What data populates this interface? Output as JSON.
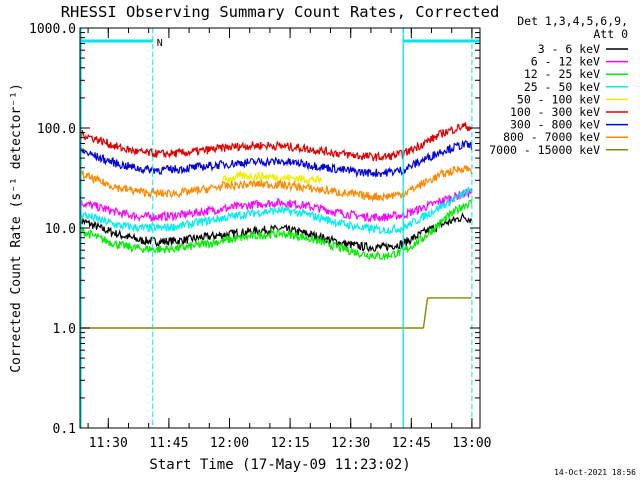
{
  "chart_data": {
    "type": "line",
    "title": "RHESSI Observing Summary Count Rates, Corrected",
    "xlabel": "Start Time (17-May-09 11:23:02)",
    "ylabel": "Corrected Count Rate (s⁻¹ detector⁻¹)",
    "ylim": [
      0.1,
      1000
    ],
    "yscale": "log",
    "xlim_minutes": [
      0,
      99
    ],
    "x_ticks": [
      "11:30",
      "11:45",
      "12:00",
      "12:15",
      "12:30",
      "12:45",
      "13:00"
    ],
    "x_tick_minutes": [
      7,
      22,
      37,
      52,
      67,
      82,
      97
    ],
    "y_ticks": [
      "0.1",
      "1.0",
      "10.0",
      "100.0",
      "1000.0"
    ],
    "y_tick_values": [
      0.1,
      1,
      10,
      100,
      1000
    ],
    "x_unit": "minutes since start",
    "legend_header": [
      "Det 1,3,4,5,6,9,",
      "Att 0"
    ],
    "legend_placement": "right",
    "timeline_marker": "N",
    "timeline_color": "#00e5ee",
    "timeline_bars": [
      [
        0,
        18
      ],
      [
        80,
        99
      ]
    ],
    "timeline_boundaries": [
      18,
      80,
      97
    ],
    "timeline_edges": [
      0,
      80
    ],
    "series": [
      {
        "name": "3 - 6 keV",
        "color": "#000000",
        "x": [
          0,
          5,
          10,
          15,
          20,
          25,
          30,
          35,
          40,
          45,
          50,
          55,
          60,
          65,
          70,
          75,
          80,
          85,
          90,
          95,
          97
        ],
        "y": [
          12,
          10,
          8.5,
          7.5,
          7.3,
          7.5,
          8,
          8.5,
          9,
          9.5,
          9.8,
          9,
          8,
          7,
          6.5,
          6.4,
          7,
          9,
          11,
          13,
          12
        ]
      },
      {
        "name": "6 - 12 keV",
        "color": "#ff00ff",
        "x": [
          0,
          5,
          10,
          15,
          20,
          25,
          30,
          35,
          40,
          45,
          50,
          55,
          60,
          65,
          70,
          75,
          80,
          85,
          90,
          95,
          97
        ],
        "y": [
          18,
          16,
          14,
          13,
          13,
          13.5,
          14.5,
          15.5,
          16.5,
          17.5,
          18,
          17,
          15.5,
          14,
          13,
          12.8,
          13.5,
          16,
          19,
          22,
          23
        ]
      },
      {
        "name": "12 - 25 keV",
        "color": "#00ee00",
        "x": [
          0,
          5,
          10,
          15,
          20,
          25,
          30,
          35,
          40,
          45,
          50,
          55,
          60,
          65,
          70,
          75,
          80,
          85,
          90,
          95,
          97
        ],
        "y": [
          9.5,
          7.8,
          6.7,
          6.2,
          6.1,
          6.3,
          6.8,
          7.4,
          8,
          8.5,
          8.8,
          8.2,
          7.2,
          6.2,
          5.5,
          5.2,
          5.8,
          8,
          12,
          17,
          18
        ]
      },
      {
        "name": "25 - 50 keV",
        "color": "#00eeee",
        "x": [
          0,
          5,
          10,
          15,
          20,
          25,
          30,
          35,
          40,
          45,
          50,
          55,
          60,
          65,
          70,
          75,
          80,
          85,
          90,
          95,
          97
        ],
        "y": [
          14,
          12,
          10.5,
          10,
          10,
          10.5,
          11.5,
          12.5,
          13.5,
          14.5,
          15,
          14,
          12.5,
          11,
          10,
          9.5,
          10,
          13,
          17,
          22,
          24
        ]
      },
      {
        "name": "50 - 100 keV",
        "color": "#eeee00",
        "x": [
          35,
          40,
          45,
          50,
          55,
          60
        ],
        "y": [
          30,
          33,
          33,
          32,
          31,
          30
        ]
      },
      {
        "name": "100 - 300 keV",
        "color": "#dd0000",
        "x": [
          0,
          5,
          10,
          15,
          20,
          25,
          30,
          35,
          40,
          45,
          50,
          55,
          60,
          65,
          70,
          75,
          80,
          85,
          90,
          95,
          97
        ],
        "y": [
          88,
          75,
          63,
          57,
          55,
          56,
          59,
          63,
          66,
          67,
          66,
          63,
          59,
          55,
          52,
          51,
          55,
          70,
          90,
          105,
          100
        ]
      },
      {
        "name": "300 - 800 keV",
        "color": "#0000dd",
        "x": [
          0,
          5,
          10,
          15,
          20,
          25,
          30,
          35,
          40,
          45,
          50,
          55,
          60,
          65,
          70,
          75,
          80,
          85,
          90,
          95,
          97
        ],
        "y": [
          60,
          50,
          43,
          39,
          38,
          39,
          41,
          43,
          45,
          46,
          46,
          44,
          41,
          38,
          36,
          35.5,
          38,
          48,
          60,
          68,
          66
        ]
      },
      {
        "name": "800 - 7000 keV",
        "color": "#ff8800",
        "x": [
          0,
          5,
          10,
          15,
          20,
          25,
          30,
          35,
          40,
          45,
          50,
          55,
          60,
          65,
          70,
          75,
          80,
          85,
          90,
          95,
          97
        ],
        "y": [
          35,
          29,
          25,
          23,
          22,
          22.5,
          24,
          26,
          27,
          27.5,
          27,
          25.5,
          24,
          22.5,
          21,
          20.5,
          22,
          28,
          35,
          40,
          38
        ]
      },
      {
        "name": "7000 - 15000 keV",
        "color": "#888800",
        "x": [
          0,
          8,
          8.1,
          60,
          60.1,
          75,
          80,
          85,
          86,
          90,
          95,
          97
        ],
        "y": [
          1,
          1,
          1,
          1,
          1,
          1,
          1,
          1,
          2,
          2,
          2,
          2
        ]
      }
    ]
  },
  "footer": {
    "timestamp": "14-Oct-2021 18:56"
  }
}
